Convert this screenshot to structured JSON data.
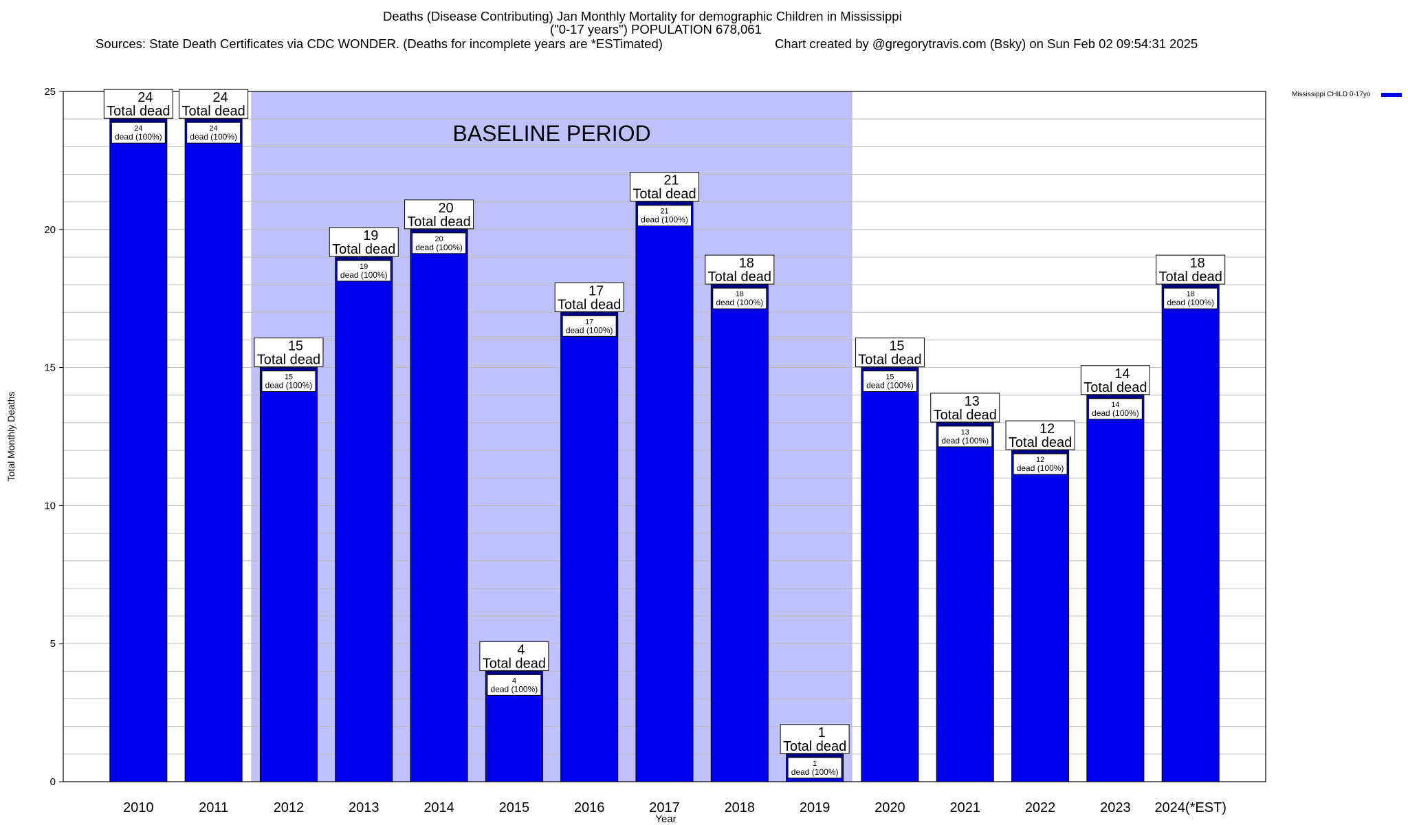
{
  "title": {
    "line1": "Deaths (Disease Contributing) Jan Monthly Mortality for demographic Children in Mississippi",
    "line2": "(\"0-17 years\") POPULATION 678,061",
    "line3_sources": "Sources: State Death Certificates via CDC WONDER. (Deaths for incomplete years are *ESTimated)",
    "line3_credit": "Chart created by @gregorytravis.com (Bsky) on Sun Feb 02 09:54:31 2025"
  },
  "legend": {
    "label": "Mississippi CHILD 0-17yo",
    "color": "#0000ee"
  },
  "annotation": {
    "baseline_label": "BASELINE PERIOD",
    "baseline_color": "#c0c0fa",
    "baseline_start": "2012",
    "baseline_end": "2019"
  },
  "colors": {
    "bar": "#0000ee",
    "bar_cap": "#000088",
    "grid": "#bbbbbb"
  },
  "chart_data": {
    "type": "bar",
    "xlabel": "Year",
    "ylabel": "Total Monthly Deaths",
    "ylim": [
      0,
      25
    ],
    "yticks": [
      0,
      5,
      10,
      15,
      20,
      25
    ],
    "grid": true,
    "legend_position": "top-right",
    "categories": [
      "2010",
      "2011",
      "2012",
      "2013",
      "2014",
      "2015",
      "2016",
      "2017",
      "2018",
      "2019",
      "2020",
      "2021",
      "2022",
      "2023",
      "2024(*EST)"
    ],
    "series": [
      {
        "name": "Mississippi CHILD 0-17yo",
        "values": [
          24,
          24,
          15,
          19,
          20,
          4,
          17,
          21,
          18,
          1,
          15,
          13,
          12,
          14,
          18
        ]
      }
    ],
    "total_label_suffix": "Total dead",
    "inner_label_suffix": "dead (100%)"
  }
}
